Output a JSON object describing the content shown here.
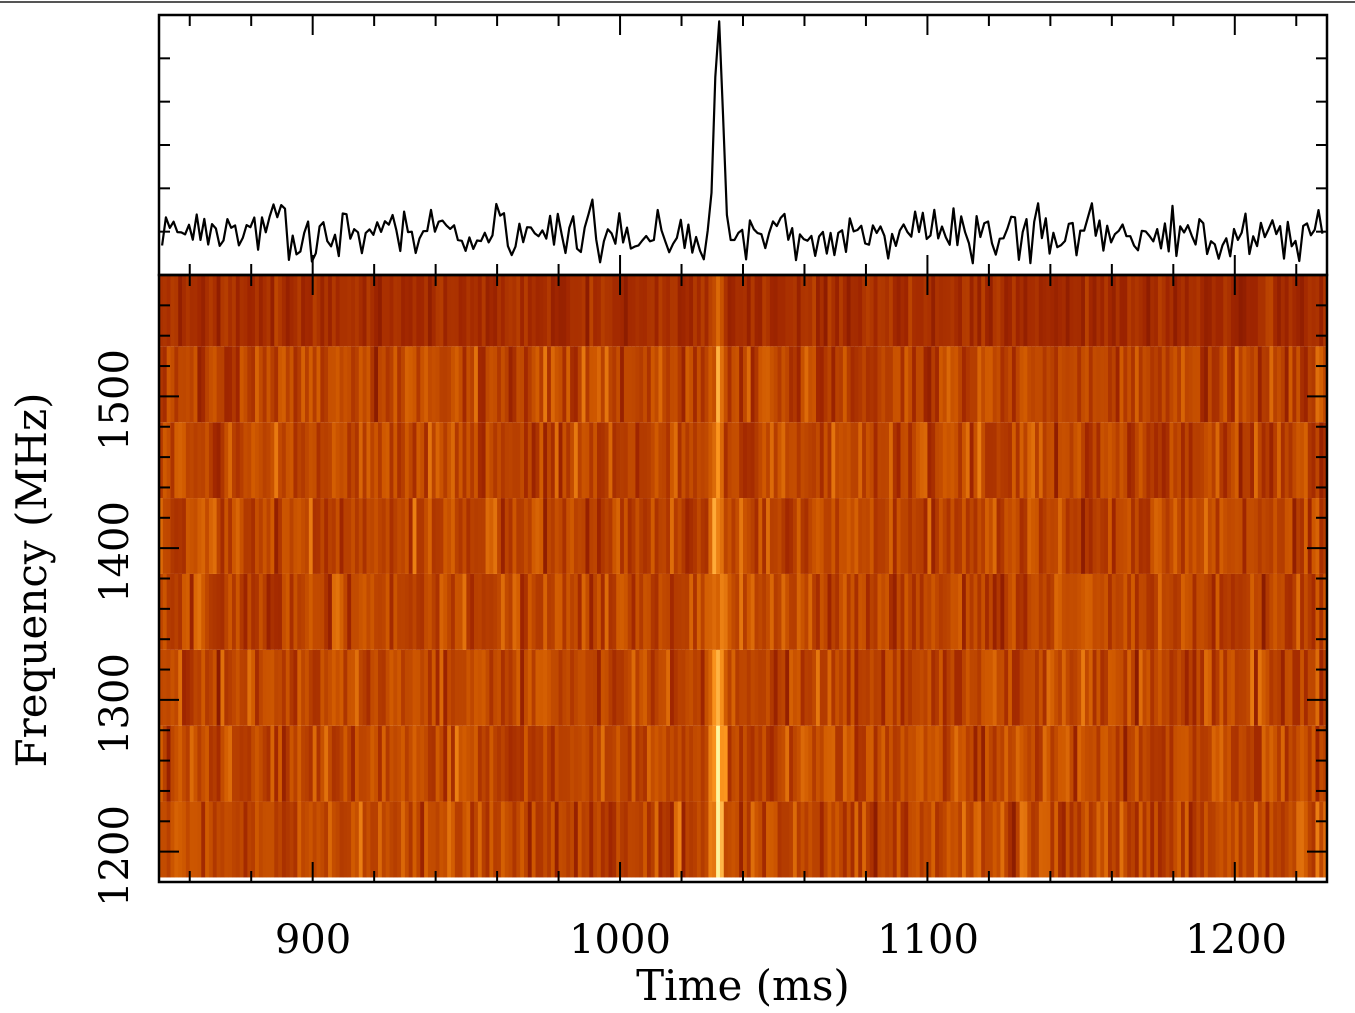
{
  "chart_data": [
    {
      "type": "line",
      "panel": "profile",
      "xlim": [
        850,
        1230
      ],
      "ylim": [
        -5,
        25
      ],
      "grid": false,
      "peak_time_ms": 1032,
      "peak_value": 23.5
    },
    {
      "type": "heatmap",
      "panel": "dynamic-spectrum",
      "xlabel": "Time (ms)",
      "ylabel": "Frequency (MHz)",
      "xlim": [
        850,
        1230
      ],
      "ylim": [
        1180,
        1580
      ],
      "x_ticks": [
        "900",
        "1000",
        "1100",
        "1200"
      ],
      "y_ticks": [
        "1200",
        "1300",
        "1400",
        "1500"
      ],
      "channel_edges_mhz": [
        1183,
        1233,
        1283,
        1333,
        1383,
        1433,
        1483,
        1533,
        1583
      ],
      "burst_time_ms": 1032,
      "colormap": [
        "#6b0a00",
        "#a02600",
        "#d05a00",
        "#ff9a20",
        "#fff6a0"
      ],
      "grid": false
    }
  ]
}
